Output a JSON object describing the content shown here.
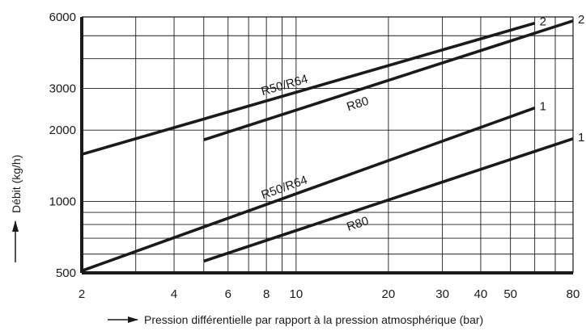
{
  "chart_data": {
    "type": "line",
    "x_scale": "log",
    "y_scale": "log",
    "xlim": [
      2,
      80
    ],
    "ylim": [
      500,
      6000
    ],
    "xlabel": "Pression différentielle par rapport à la pression atmosphérique (bar)",
    "ylabel": "Débit (kg/h)",
    "x_ticks": [
      {
        "value": 2,
        "label": "2"
      },
      {
        "value": 4,
        "label": "4"
      },
      {
        "value": 6,
        "label": "6"
      },
      {
        "value": 8,
        "label": "8"
      },
      {
        "value": 10,
        "label": "10"
      },
      {
        "value": 20,
        "label": "20"
      },
      {
        "value": 30,
        "label": "30"
      },
      {
        "value": 40,
        "label": "40"
      },
      {
        "value": 50,
        "label": "50"
      },
      {
        "value": 80,
        "label": "80"
      }
    ],
    "y_ticks": [
      {
        "value": 500,
        "label": "500"
      },
      {
        "value": 1000,
        "label": "1000"
      },
      {
        "value": 2000,
        "label": "2000"
      },
      {
        "value": 3000,
        "label": "3000"
      },
      {
        "value": 6000,
        "label": "6000"
      }
    ],
    "x_grid": [
      2,
      3,
      4,
      5,
      6,
      7,
      8,
      9,
      10,
      20,
      30,
      40,
      50,
      60,
      70,
      80
    ],
    "y_grid": [
      500,
      600,
      700,
      800,
      900,
      1000,
      2000,
      3000,
      4000,
      5000,
      6000
    ],
    "grid": true,
    "series": [
      {
        "name": "R50/R64",
        "curve": "2",
        "x": [
          2,
          60
        ],
        "y": [
          1580,
          5650
        ]
      },
      {
        "name": "R80",
        "curve": "2",
        "x": [
          5,
          80
        ],
        "y": [
          1820,
          5780
        ]
      },
      {
        "name": "R50/R64",
        "curve": "1",
        "x": [
          2,
          60
        ],
        "y": [
          510,
          2480
        ]
      },
      {
        "name": "R80",
        "curve": "1",
        "x": [
          5,
          80
        ],
        "y": [
          560,
          1840
        ]
      }
    ]
  }
}
